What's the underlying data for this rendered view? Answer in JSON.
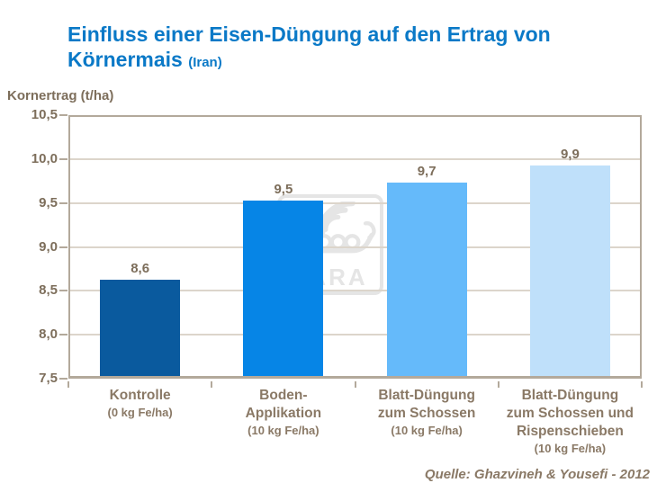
{
  "title": {
    "line1": "Einfluss einer Eisen-Düngung auf den Ertrag von",
    "line2": "Körnermais",
    "suffix": "(Iran)"
  },
  "watermark_text": "YARA",
  "source": "Quelle: Ghazvineh & Yousefi - 2012",
  "chart_data": {
    "type": "bar",
    "title": "Einfluss einer Eisen-Düngung auf den Ertrag von Körnermais (Iran)",
    "ylabel": "Kornertrag (t/ha)",
    "xlabel": "",
    "ylim": [
      7.5,
      10.5
    ],
    "ytick_step": 0.5,
    "ytick_labels": [
      "7,5",
      "8,0",
      "8,5",
      "9,0",
      "9,5",
      "10,0",
      "10,5"
    ],
    "grid": true,
    "legend": "none",
    "categories": [
      {
        "lines": [
          "Kontrolle"
        ],
        "sub": "(0 kg Fe/ha)"
      },
      {
        "lines": [
          "Boden-",
          "Applikation"
        ],
        "sub": "(10 kg Fe/ha)"
      },
      {
        "lines": [
          "Blatt-Düngung",
          "zum Schossen"
        ],
        "sub": "(10 kg Fe/ha)"
      },
      {
        "lines": [
          "Blatt-Düngung",
          "zum Schossen und",
          "Rispenschieben"
        ],
        "sub": "(10 kg Fe/ha)"
      }
    ],
    "values": [
      8.6,
      9.5,
      9.7,
      9.9
    ],
    "value_labels": [
      "8,6",
      "9,5",
      "9,7",
      "9,9"
    ],
    "bar_colors": [
      "#0A5A9E",
      "#0685E6",
      "#65BAFA",
      "#BFE0FA"
    ],
    "source": "Quelle: Ghazvineh & Yousefi - 2012"
  },
  "colors": {
    "title_blue": "#0A79C7",
    "brown_dark": "#7D6E5B",
    "brown": "#8A7966",
    "grid_line": "#DCD5CB",
    "plot_border": "#B3A99B",
    "watermark_gray": "#E5E5E5"
  }
}
